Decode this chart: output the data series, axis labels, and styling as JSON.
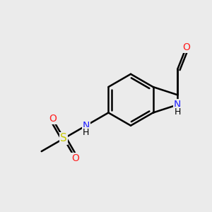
{
  "bg_color": "#ebebeb",
  "bond_color": "#000000",
  "bond_width": 1.8,
  "atom_colors": {
    "C": "#000000",
    "N": "#2020ff",
    "O": "#ff2020",
    "S": "#c8c800",
    "H": "#000000"
  },
  "font_size_label": 10,
  "font_size_sub": 8.5
}
